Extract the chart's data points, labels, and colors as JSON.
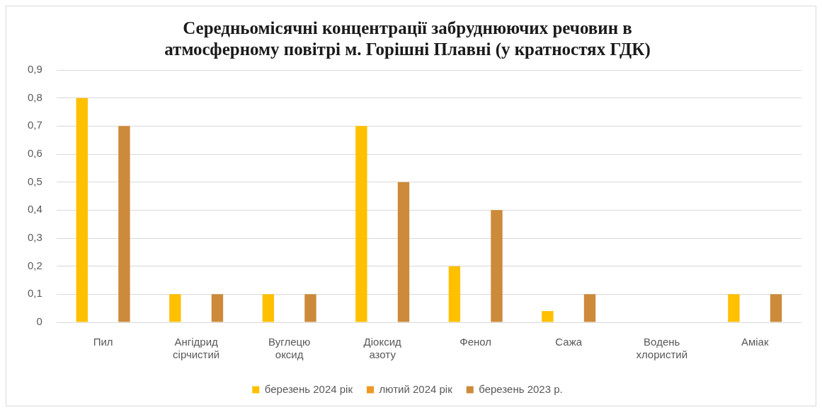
{
  "chart_data": {
    "type": "bar",
    "title": "Середньомісячні концентрації забруднюючих речовин в\nатмосферному повітрі м. Горішні Плавні (у кратностях ГДК)",
    "categories": [
      "Пил",
      "Ангідрид сірчистий",
      "Вуглецю оксид",
      "Діоксид азоту",
      "Фенол",
      "Сажа",
      "Водень хлористий",
      "Аміак"
    ],
    "series": [
      {
        "name": "березень 2024 рік",
        "color": "#ffc000",
        "values": [
          0.8,
          0.1,
          0.1,
          0.7,
          0.2,
          0.04,
          null,
          0.1
        ]
      },
      {
        "name": "лютий 2024 рік",
        "color": "#ed9a22",
        "values": [
          null,
          null,
          null,
          null,
          null,
          null,
          null,
          null
        ]
      },
      {
        "name": "березень 2023 р.",
        "color": "#cc8a3a",
        "values": [
          0.7,
          0.1,
          0.1,
          0.5,
          0.4,
          0.1,
          null,
          0.1
        ]
      }
    ],
    "ylim": [
      0,
      0.9
    ],
    "yticks": [
      0,
      {
        "value": 0.1,
        "label": "0,1"
      },
      {
        "value": 0.2,
        "label": "0,2"
      },
      {
        "value": 0.3,
        "label": "0,3"
      },
      {
        "value": 0.4,
        "label": "0,4"
      },
      {
        "value": 0.5,
        "label": "0,5"
      },
      {
        "value": 0.6,
        "label": "0,6"
      },
      {
        "value": 0.7,
        "label": "0,7"
      },
      {
        "value": 0.8,
        "label": "0,8"
      },
      {
        "value": 0.9,
        "label": "0,9"
      }
    ],
    "grid": "y",
    "legend": "bottom"
  }
}
